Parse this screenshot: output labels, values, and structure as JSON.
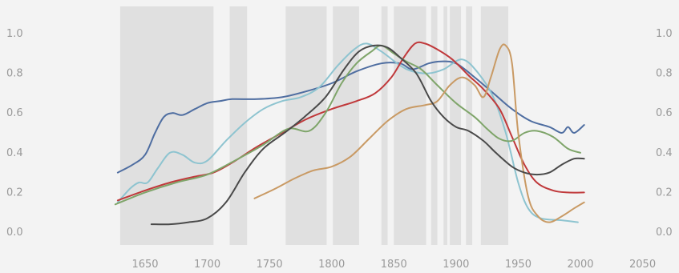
{
  "chart_data": {
    "type": "line",
    "title": "",
    "xlabel": "",
    "ylabel": "",
    "xlim": [
      1615,
      2050
    ],
    "ylim": [
      0,
      1.0
    ],
    "x_ticks": [
      1650,
      1700,
      1750,
      1800,
      1850,
      1900,
      1950,
      2000,
      2050
    ],
    "y_ticks": [
      0.0,
      0.2,
      0.4,
      0.6,
      0.8,
      1.0
    ],
    "y_tick_labels": [
      "0.0",
      "0.2",
      "0.4",
      "0.6",
      "0.8",
      "1.0"
    ],
    "y_axis_sides": [
      "left",
      "right"
    ],
    "grid": false,
    "legend": "none",
    "shaded_periods": [
      [
        1630,
        1705
      ],
      [
        1718,
        1732
      ],
      [
        1763,
        1796
      ],
      [
        1801,
        1822
      ],
      [
        1840,
        1845
      ],
      [
        1850,
        1876
      ],
      [
        1880,
        1885
      ],
      [
        1890,
        1893
      ],
      [
        1895,
        1904
      ],
      [
        1908,
        1913
      ],
      [
        1920,
        1942
      ]
    ],
    "shade_color": "#e0e0e0",
    "series": [
      {
        "color": "#4f6ea1",
        "points": [
          [
            1628,
            0.3
          ],
          [
            1640,
            0.34
          ],
          [
            1650,
            0.39
          ],
          [
            1658,
            0.5
          ],
          [
            1665,
            0.58
          ],
          [
            1672,
            0.6
          ],
          [
            1680,
            0.59
          ],
          [
            1690,
            0.62
          ],
          [
            1700,
            0.65
          ],
          [
            1710,
            0.66
          ],
          [
            1720,
            0.67
          ],
          [
            1740,
            0.67
          ],
          [
            1760,
            0.68
          ],
          [
            1780,
            0.71
          ],
          [
            1800,
            0.75
          ],
          [
            1820,
            0.81
          ],
          [
            1840,
            0.85
          ],
          [
            1855,
            0.85
          ],
          [
            1865,
            0.82
          ],
          [
            1878,
            0.85
          ],
          [
            1888,
            0.86
          ],
          [
            1900,
            0.85
          ],
          [
            1915,
            0.78
          ],
          [
            1930,
            0.7
          ],
          [
            1945,
            0.62
          ],
          [
            1960,
            0.56
          ],
          [
            1975,
            0.53
          ],
          [
            1985,
            0.5
          ],
          [
            1990,
            0.53
          ],
          [
            1995,
            0.5
          ],
          [
            2003,
            0.54
          ]
        ]
      },
      {
        "color": "#8ec4d0",
        "points": [
          [
            1628,
            0.15
          ],
          [
            1638,
            0.22
          ],
          [
            1645,
            0.25
          ],
          [
            1652,
            0.25
          ],
          [
            1660,
            0.32
          ],
          [
            1670,
            0.4
          ],
          [
            1680,
            0.39
          ],
          [
            1690,
            0.35
          ],
          [
            1700,
            0.36
          ],
          [
            1715,
            0.46
          ],
          [
            1730,
            0.55
          ],
          [
            1745,
            0.62
          ],
          [
            1760,
            0.66
          ],
          [
            1775,
            0.68
          ],
          [
            1790,
            0.73
          ],
          [
            1805,
            0.84
          ],
          [
            1818,
            0.92
          ],
          [
            1828,
            0.95
          ],
          [
            1840,
            0.91
          ],
          [
            1855,
            0.84
          ],
          [
            1865,
            0.81
          ],
          [
            1878,
            0.8
          ],
          [
            1890,
            0.82
          ],
          [
            1905,
            0.87
          ],
          [
            1918,
            0.8
          ],
          [
            1930,
            0.68
          ],
          [
            1940,
            0.5
          ],
          [
            1950,
            0.25
          ],
          [
            1958,
            0.12
          ],
          [
            1968,
            0.07
          ],
          [
            1985,
            0.06
          ],
          [
            1998,
            0.05
          ]
        ]
      },
      {
        "color": "#c0393b",
        "points": [
          [
            1628,
            0.16
          ],
          [
            1650,
            0.21
          ],
          [
            1670,
            0.25
          ],
          [
            1690,
            0.28
          ],
          [
            1705,
            0.3
          ],
          [
            1720,
            0.35
          ],
          [
            1740,
            0.43
          ],
          [
            1760,
            0.5
          ],
          [
            1780,
            0.57
          ],
          [
            1800,
            0.62
          ],
          [
            1820,
            0.66
          ],
          [
            1835,
            0.7
          ],
          [
            1848,
            0.78
          ],
          [
            1858,
            0.88
          ],
          [
            1867,
            0.95
          ],
          [
            1875,
            0.95
          ],
          [
            1885,
            0.92
          ],
          [
            1897,
            0.87
          ],
          [
            1910,
            0.79
          ],
          [
            1922,
            0.72
          ],
          [
            1935,
            0.62
          ],
          [
            1945,
            0.48
          ],
          [
            1955,
            0.34
          ],
          [
            1965,
            0.25
          ],
          [
            1978,
            0.21
          ],
          [
            1990,
            0.2
          ],
          [
            2003,
            0.2
          ]
        ]
      },
      {
        "color": "#7fa56a",
        "points": [
          [
            1626,
            0.14
          ],
          [
            1650,
            0.2
          ],
          [
            1675,
            0.25
          ],
          [
            1700,
            0.29
          ],
          [
            1725,
            0.37
          ],
          [
            1745,
            0.44
          ],
          [
            1765,
            0.52
          ],
          [
            1782,
            0.51
          ],
          [
            1795,
            0.6
          ],
          [
            1808,
            0.75
          ],
          [
            1820,
            0.85
          ],
          [
            1832,
            0.91
          ],
          [
            1840,
            0.94
          ],
          [
            1850,
            0.9
          ],
          [
            1860,
            0.86
          ],
          [
            1872,
            0.82
          ],
          [
            1885,
            0.74
          ],
          [
            1900,
            0.65
          ],
          [
            1915,
            0.58
          ],
          [
            1925,
            0.52
          ],
          [
            1935,
            0.47
          ],
          [
            1945,
            0.46
          ],
          [
            1955,
            0.5
          ],
          [
            1965,
            0.51
          ],
          [
            1978,
            0.48
          ],
          [
            1990,
            0.42
          ],
          [
            2000,
            0.4
          ]
        ]
      },
      {
        "color": "#c99a64",
        "points": [
          [
            1738,
            0.17
          ],
          [
            1755,
            0.22
          ],
          [
            1770,
            0.27
          ],
          [
            1785,
            0.31
          ],
          [
            1800,
            0.33
          ],
          [
            1815,
            0.38
          ],
          [
            1830,
            0.47
          ],
          [
            1845,
            0.56
          ],
          [
            1860,
            0.62
          ],
          [
            1875,
            0.64
          ],
          [
            1885,
            0.66
          ],
          [
            1895,
            0.74
          ],
          [
            1905,
            0.78
          ],
          [
            1915,
            0.74
          ],
          [
            1922,
            0.68
          ],
          [
            1928,
            0.78
          ],
          [
            1935,
            0.92
          ],
          [
            1940,
            0.94
          ],
          [
            1945,
            0.85
          ],
          [
            1950,
            0.5
          ],
          [
            1958,
            0.18
          ],
          [
            1966,
            0.08
          ],
          [
            1975,
            0.05
          ],
          [
            1985,
            0.08
          ],
          [
            1995,
            0.12
          ],
          [
            2003,
            0.15
          ]
        ]
      },
      {
        "color": "#4a4a4a",
        "points": [
          [
            1655,
            0.04
          ],
          [
            1670,
            0.04
          ],
          [
            1685,
            0.05
          ],
          [
            1700,
            0.07
          ],
          [
            1715,
            0.15
          ],
          [
            1730,
            0.3
          ],
          [
            1745,
            0.42
          ],
          [
            1762,
            0.5
          ],
          [
            1778,
            0.58
          ],
          [
            1795,
            0.68
          ],
          [
            1810,
            0.82
          ],
          [
            1822,
            0.91
          ],
          [
            1834,
            0.94
          ],
          [
            1845,
            0.93
          ],
          [
            1855,
            0.88
          ],
          [
            1868,
            0.8
          ],
          [
            1880,
            0.66
          ],
          [
            1890,
            0.58
          ],
          [
            1900,
            0.53
          ],
          [
            1910,
            0.51
          ],
          [
            1922,
            0.46
          ],
          [
            1932,
            0.4
          ],
          [
            1945,
            0.33
          ],
          [
            1955,
            0.3
          ],
          [
            1965,
            0.29
          ],
          [
            1975,
            0.3
          ],
          [
            1985,
            0.34
          ],
          [
            1995,
            0.37
          ],
          [
            2003,
            0.37
          ]
        ]
      }
    ]
  }
}
